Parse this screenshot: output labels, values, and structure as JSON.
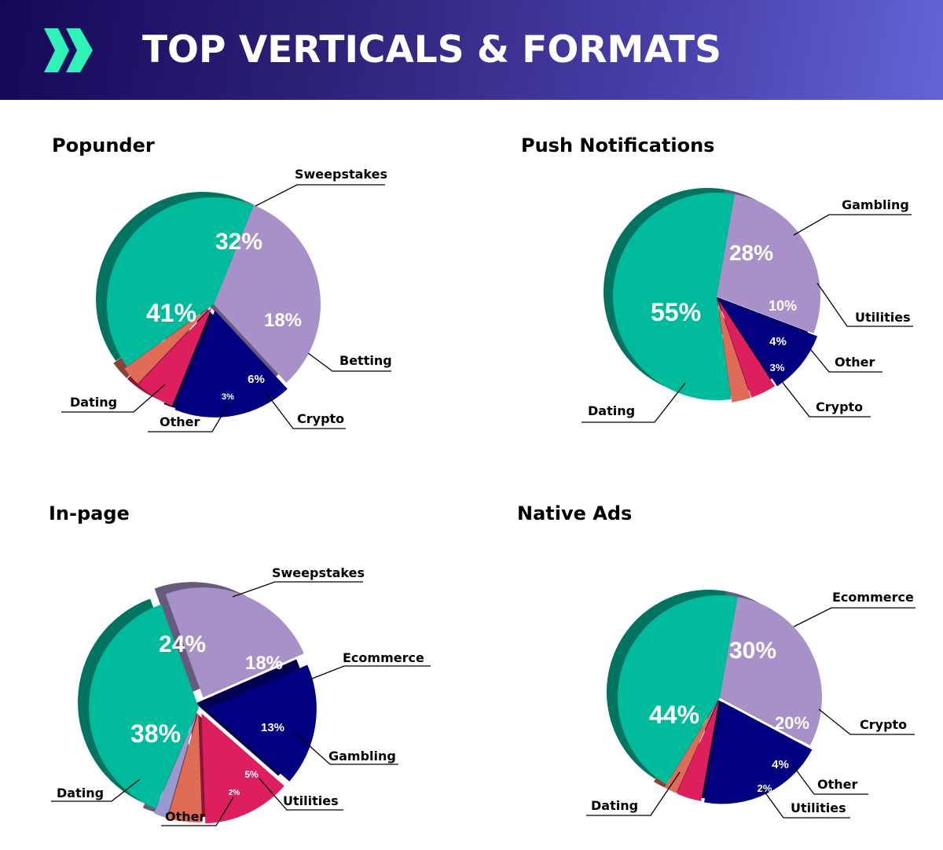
{
  "header": {
    "title": "TOP VERTICALS & FORMATS",
    "icon": "double-chevron-right-icon",
    "accent_color": "#2ef2b8",
    "gradient": [
      "#15085a",
      "#6365d6"
    ]
  },
  "colors": {
    "Dating": "#00bb9b",
    "Sweepstakes": "#a891c8",
    "Gambling": "#a891c8",
    "Ecommerce_lilac": "#a891c8",
    "navy": "#010080",
    "pink": "#de1f5e",
    "salmon": "#e06b57",
    "periwinkle": "#9a98d0"
  },
  "panels": [
    {
      "title": "Popunder",
      "slices": [
        {
          "label": "Sweepstakes",
          "pct": "32%"
        },
        {
          "label": "Betting",
          "pct": "18%"
        },
        {
          "label": "Crypto",
          "pct": "6%"
        },
        {
          "label": "Other",
          "pct": "3%"
        },
        {
          "label": "Dating",
          "pct": "41%"
        }
      ]
    },
    {
      "title": "Push Notifications",
      "slices": [
        {
          "label": "Gambling",
          "pct": "28%"
        },
        {
          "label": "Utilities",
          "pct": "10%"
        },
        {
          "label": "Other",
          "pct": "4%"
        },
        {
          "label": "Crypto",
          "pct": "3%"
        },
        {
          "label": "Dating",
          "pct": "55%"
        }
      ]
    },
    {
      "title": "In-page",
      "slices": [
        {
          "label": "Sweepstakes",
          "pct": "24%"
        },
        {
          "label": "Ecommerce",
          "pct": "18%"
        },
        {
          "label": "Gambling",
          "pct": "13%"
        },
        {
          "label": "Utilities",
          "pct": "5%"
        },
        {
          "label": "Other",
          "pct": "2%"
        },
        {
          "label": "Dating",
          "pct": "38%"
        }
      ]
    },
    {
      "title": "Native Ads",
      "slices": [
        {
          "label": "Ecommerce",
          "pct": "30%"
        },
        {
          "label": "Crypto",
          "pct": "20%"
        },
        {
          "label": "Other",
          "pct": "4%"
        },
        {
          "label": "Utilities",
          "pct": "2%"
        },
        {
          "label": "Dating",
          "pct": "44%"
        }
      ]
    }
  ],
  "chart_data": [
    {
      "type": "pie",
      "title": "Popunder",
      "categories": [
        "Sweepstakes",
        "Betting",
        "Crypto",
        "Other",
        "Dating"
      ],
      "values": [
        32,
        18,
        6,
        3,
        41
      ],
      "colors": [
        "#a891c8",
        "#010080",
        "#de1f5e",
        "#e06b57",
        "#00bb9b"
      ],
      "style": "3D exploded pie with leader-line labels"
    },
    {
      "type": "pie",
      "title": "Push Notifications",
      "categories": [
        "Gambling",
        "Utilities",
        "Other",
        "Crypto",
        "Dating"
      ],
      "values": [
        28,
        10,
        4,
        3,
        55
      ],
      "colors": [
        "#a891c8",
        "#010080",
        "#de1f5e",
        "#e06b57",
        "#00bb9b"
      ],
      "style": "3D exploded pie with leader-line labels"
    },
    {
      "type": "pie",
      "title": "In-page",
      "categories": [
        "Sweepstakes",
        "Ecommerce",
        "Gambling",
        "Utilities",
        "Other",
        "Dating"
      ],
      "values": [
        24,
        18,
        13,
        5,
        2,
        38
      ],
      "colors": [
        "#a891c8",
        "#010080",
        "#de1f5e",
        "#e06b57",
        "#9a98d0",
        "#00bb9b"
      ],
      "style": "3D exploded pie with leader-line labels"
    },
    {
      "type": "pie",
      "title": "Native Ads",
      "categories": [
        "Ecommerce",
        "Crypto",
        "Other",
        "Utilities",
        "Dating"
      ],
      "values": [
        30,
        20,
        4,
        2,
        44
      ],
      "colors": [
        "#a891c8",
        "#010080",
        "#de1f5e",
        "#e06b57",
        "#00bb9b"
      ],
      "style": "3D exploded pie with leader-line labels"
    }
  ]
}
